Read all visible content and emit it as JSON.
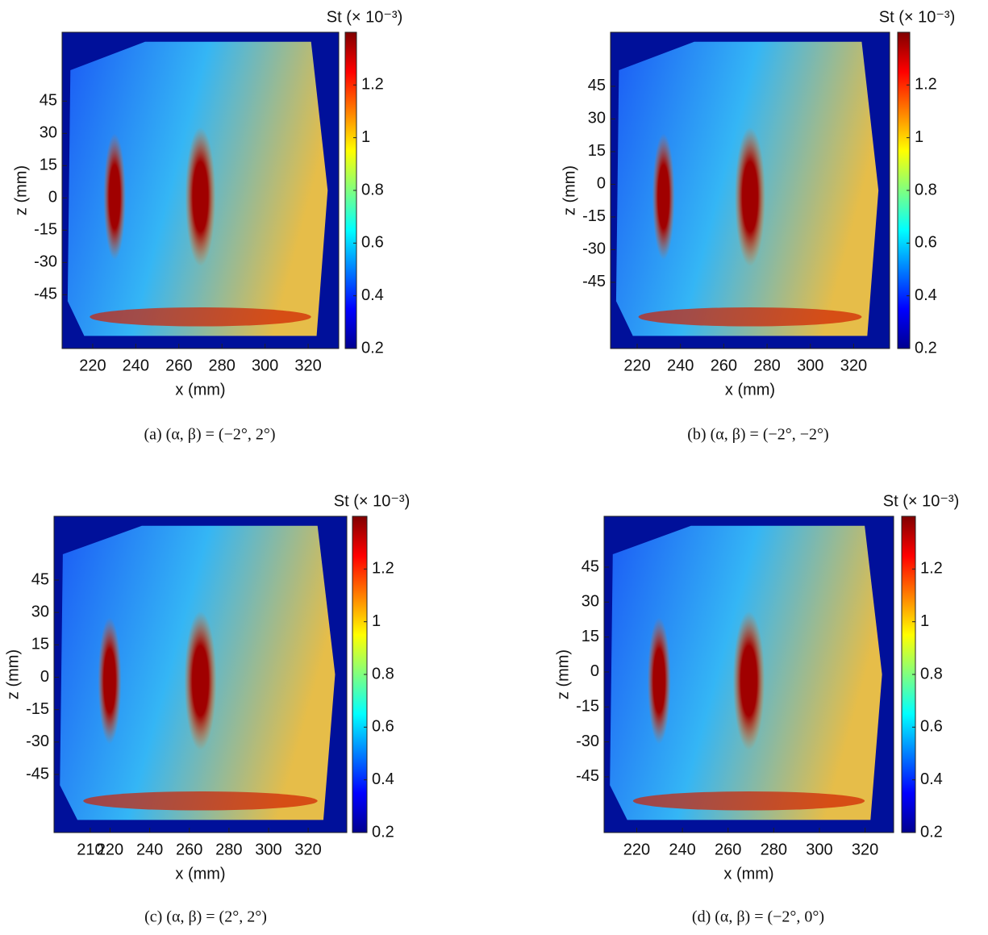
{
  "chart_data": [
    {
      "type": "heatmap",
      "title": "(a) (α, β) = (−2°, 2°)",
      "xlabel": "x (mm)",
      "ylabel": "z (mm)",
      "colorbar_label": "St (× 10⁻³)",
      "xlim": [
        205.8,
        334.2
      ],
      "xticks": [
        220,
        240,
        260,
        280,
        300,
        320
      ],
      "ylim": [
        -70,
        77
      ],
      "yticks": [
        -45,
        -30,
        -15,
        0,
        15,
        30,
        45
      ],
      "clim": [
        0.2,
        1.4
      ],
      "cticks": [
        0.2,
        0.4,
        0.6,
        0.8,
        1,
        1.2
      ]
    },
    {
      "type": "heatmap",
      "title": "(b) (α, β) = (−2°, −2°)",
      "xlabel": "x (mm)",
      "ylabel": "z (mm)",
      "colorbar_label": "St (× 10⁻³)",
      "xlim": [
        207.7,
        336.6
      ],
      "xticks": [
        220,
        240,
        260,
        280,
        300,
        320
      ],
      "ylim": [
        -75.4,
        69.8
      ],
      "yticks": [
        -45,
        -30,
        -15,
        0,
        15,
        30,
        45
      ],
      "clim": [
        0.2,
        1.4
      ],
      "cticks": [
        0.2,
        0.4,
        0.6,
        0.8,
        1,
        1.2
      ]
    },
    {
      "type": "heatmap",
      "title": "(c) (α, β) = (2°, 2°)",
      "xlabel": "x (mm)",
      "ylabel": "z (mm)",
      "colorbar_label": "St (× 10⁻³)",
      "xlim": [
        191.7,
        339.5
      ],
      "xticks": [
        210,
        220,
        240,
        260,
        280,
        300,
        320
      ],
      "ylim": [
        -71.9,
        74.5
      ],
      "yticks": [
        -45,
        -30,
        -15,
        0,
        15,
        30,
        45
      ],
      "clim": [
        0.2,
        1.4
      ],
      "cticks": [
        0.2,
        0.4,
        0.6,
        0.8,
        1,
        1.2
      ]
    },
    {
      "type": "heatmap",
      "title": "(d) (α, β) = (−2°, 0°)",
      "xlabel": "x (mm)",
      "ylabel": "z (mm)",
      "colorbar_label": "St (× 10⁻³)",
      "xlim": [
        205.7,
        332.5
      ],
      "xticks": [
        220,
        240,
        260,
        280,
        300,
        320
      ],
      "ylim": [
        -68.9,
        66.8
      ],
      "yticks": [
        -45,
        -30,
        -15,
        0,
        15,
        30,
        45
      ],
      "clim": [
        0.2,
        1.4
      ],
      "cticks": [
        0.2,
        0.4,
        0.6,
        0.8,
        1,
        1.2
      ]
    }
  ]
}
